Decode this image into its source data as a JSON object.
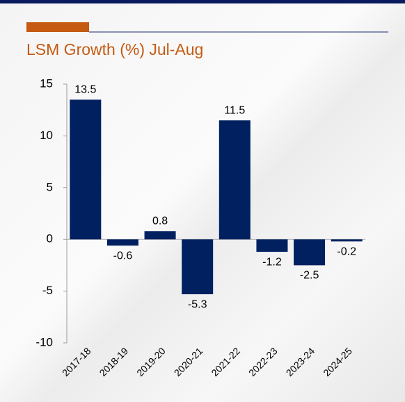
{
  "chart_data": {
    "type": "bar",
    "title": "LSM Growth (%) Jul-Aug",
    "categories": [
      "2017-18",
      "2018-19",
      "2019-20",
      "2020-21",
      "2021-22",
      "2022-23",
      "2023-24",
      "2024-25"
    ],
    "values": [
      13.5,
      -0.6,
      0.8,
      -5.3,
      11.5,
      -1.2,
      -2.5,
      -0.2
    ],
    "color": "#002060",
    "ylim": [
      -10,
      15
    ],
    "yticks": [
      -10,
      -5,
      0,
      5,
      10,
      15
    ],
    "grid": false
  }
}
